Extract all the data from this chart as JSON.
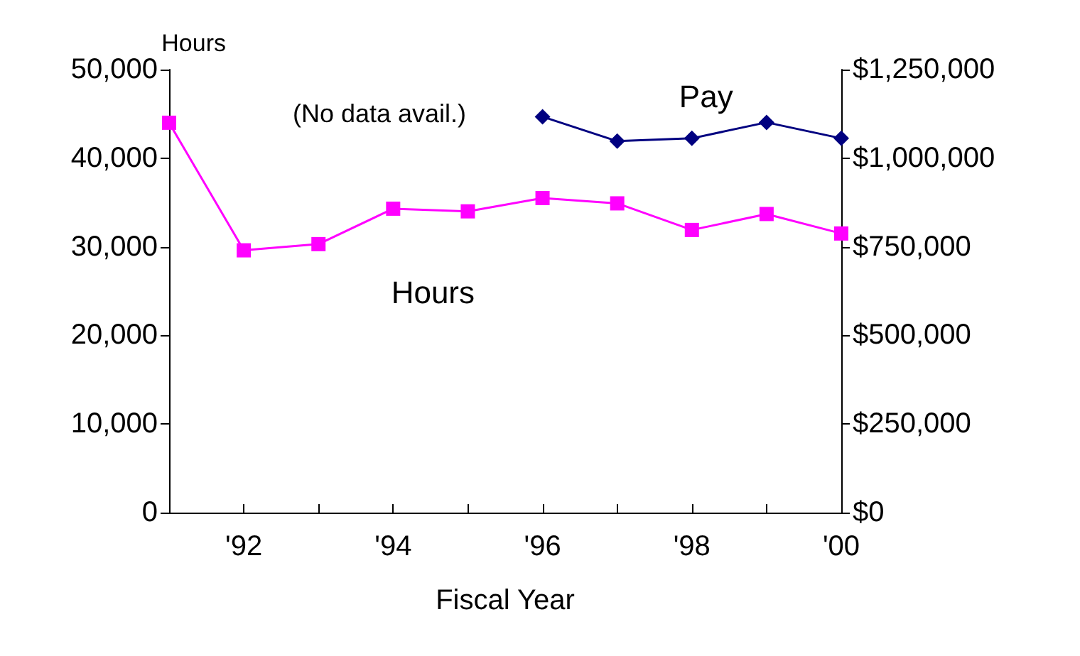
{
  "chart_data": {
    "type": "line",
    "ylabel": "Hours",
    "xlabel": "Fiscal Year",
    "x": [
      1991,
      1992,
      1993,
      1994,
      1995,
      1996,
      1997,
      1998,
      1999,
      2000
    ],
    "series": [
      {
        "name": "Hours",
        "color": "#ff00ff",
        "marker": "square",
        "values": [
          44000,
          29600,
          30300,
          34300,
          34000,
          35500,
          34900,
          31900,
          33700,
          31500
        ]
      },
      {
        "name": "Pay",
        "color": "#000080",
        "marker": "diamond",
        "axis": "y2",
        "values": [
          null,
          null,
          null,
          null,
          null,
          1117000,
          1048000,
          1056000,
          1101000,
          1056000
        ]
      }
    ],
    "annotations": [
      "(No data avail.)"
    ],
    "xlim": [
      1991,
      2000
    ],
    "xticks": [
      {
        "value": 1991,
        "label": null
      },
      {
        "value": 1992,
        "label": "'92"
      },
      {
        "value": 1993,
        "label": null
      },
      {
        "value": 1994,
        "label": "'94"
      },
      {
        "value": 1995,
        "label": null
      },
      {
        "value": 1996,
        "label": "'96"
      },
      {
        "value": 1997,
        "label": null
      },
      {
        "value": 1998,
        "label": "'98"
      },
      {
        "value": 1999,
        "label": null
      },
      {
        "value": 2000,
        "label": "'00"
      }
    ],
    "ylim": [
      0,
      50000
    ],
    "yticks": [
      0,
      {
        "value": 10000,
        "label": "10,000"
      },
      {
        "value": 20000,
        "label": "20,000"
      },
      {
        "value": 30000,
        "label": "30,000"
      },
      {
        "value": 40000,
        "label": "40,000"
      },
      {
        "value": 50000,
        "label": "50,000"
      }
    ],
    "y2lim": [
      0,
      1250000
    ],
    "y2ticks": [
      {
        "value": 0,
        "label": "$0"
      },
      {
        "value": 250000,
        "label": "$250,000"
      },
      {
        "value": 500000,
        "label": "$500,000"
      },
      {
        "value": 750000,
        "label": "$750,000"
      },
      {
        "value": 1000000,
        "label": "$1,000,000"
      },
      {
        "value": 1250000,
        "label": "$1,250,000"
      }
    ],
    "grid": false,
    "legend": false
  }
}
